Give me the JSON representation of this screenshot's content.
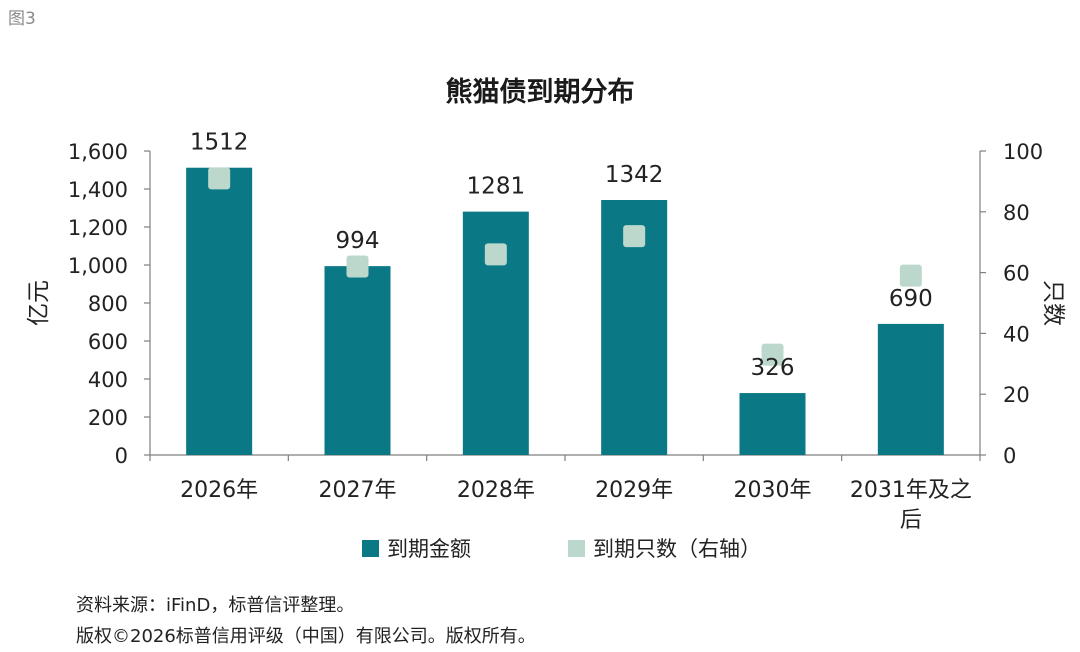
{
  "figure_label": "图3",
  "chart_data": {
    "type": "bar",
    "title": "熊猫债到期分布",
    "categories": [
      "2026年",
      "2027年",
      "2028年",
      "2029年",
      "2030年",
      "2031年及之后"
    ],
    "ylabel": "亿元",
    "y2label": "只数",
    "ylim": [
      0,
      1600
    ],
    "y2lim": [
      0,
      100
    ],
    "y_ticks": [
      "0",
      "200",
      "400",
      "600",
      "800",
      "1,000",
      "1,200",
      "1,400",
      "1,600"
    ],
    "y2_ticks": [
      "0",
      "20",
      "40",
      "60",
      "80",
      "100"
    ],
    "series": [
      {
        "name": "到期金额",
        "type": "bar",
        "axis": "left",
        "color": "#0b7885",
        "values": [
          1512,
          994,
          1281,
          1342,
          326,
          690
        ],
        "data_labels": [
          "1512",
          "994",
          "1281",
          "1342",
          "326",
          "690"
        ]
      },
      {
        "name": "到期只数（右轴）",
        "type": "scatter",
        "axis": "right",
        "color": "#bcd8cc",
        "values": [
          91,
          62,
          66,
          72,
          33,
          59
        ]
      }
    ],
    "legend_position": "bottom",
    "grid": false
  },
  "source_lines": [
    "资料来源：iFinD，标普信评整理。",
    "版权©2026标普信用评级（中国）有限公司。版权所有。"
  ]
}
